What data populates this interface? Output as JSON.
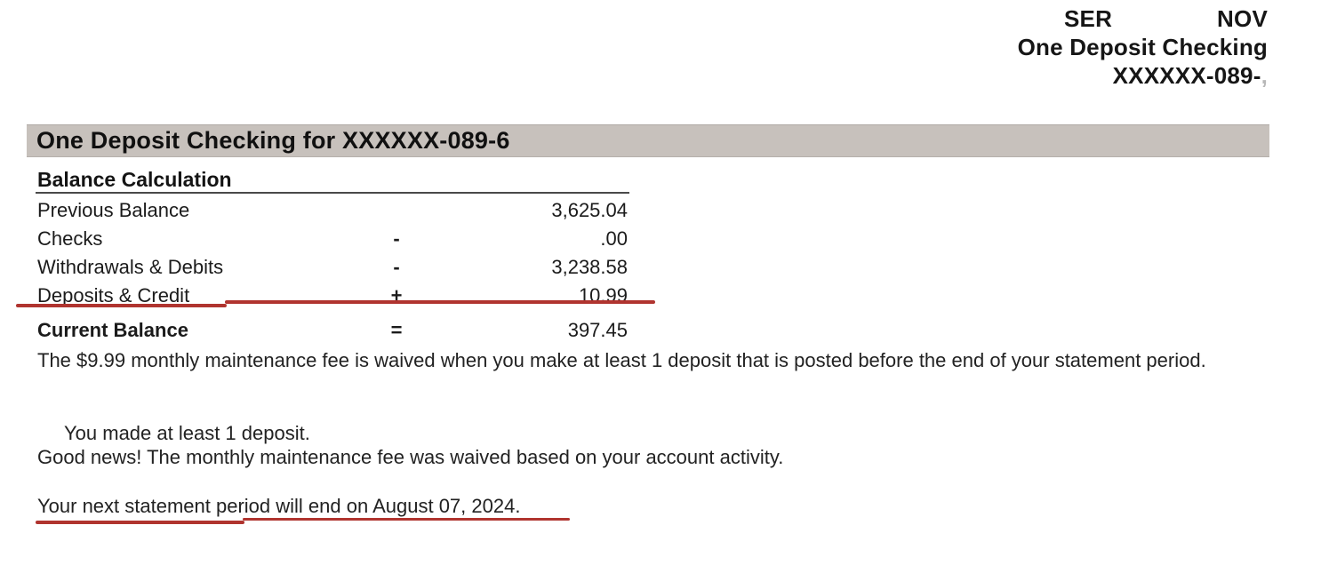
{
  "header_right": {
    "line1_left": "SER",
    "line1_right": "NOV",
    "line2": "One Deposit Checking",
    "line3": "XXXXXX-089-",
    "line3_suffix": ","
  },
  "section_title": "One Deposit Checking for XXXXXX-089-6",
  "balance": {
    "title": "Balance Calculation",
    "rows": [
      {
        "label": "Previous Balance",
        "op": "",
        "amount": "3,625.04"
      },
      {
        "label": "Checks",
        "op": "-",
        "amount": ".00"
      },
      {
        "label": "Withdrawals & Debits",
        "op": "-",
        "amount": "3,238.58"
      },
      {
        "label": "Deposits & Credit",
        "op": "+",
        "amount": "10.99"
      },
      {
        "label": "Current Balance",
        "op": "=",
        "amount": "397.45"
      }
    ]
  },
  "paragraphs": {
    "fee_notice": "The $9.99 monthly maintenance fee is waived when you make at least 1 deposit that is posted before the end of your statement period.",
    "deposit_confirmation": "You made at least 1 deposit.",
    "good_news": "Good news! The monthly maintenance fee was waived based on your account activity.",
    "next_statement": "Your next statement period will end on August 07, 2024."
  },
  "colors": {
    "section_bar_background": "#c7c1bc",
    "annotation_red": "#b0342f",
    "text": "#1b1b1b"
  }
}
